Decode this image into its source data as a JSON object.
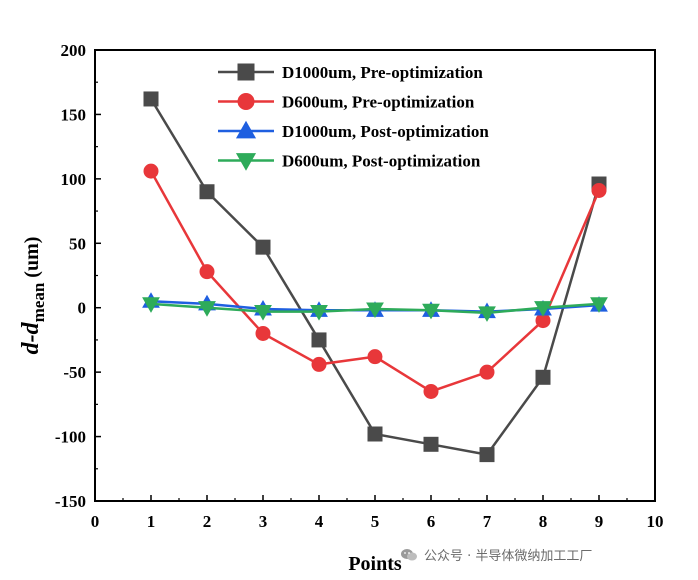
{
  "chart_data": {
    "type": "line",
    "title": "",
    "xlabel": "Points",
    "ylabel": "d-d",
    "ylabel_subscript": "mean",
    "ylabel_unit": " (um)",
    "xlim": [
      0,
      10
    ],
    "ylim": [
      -150,
      200
    ],
    "xticks": [
      0,
      1,
      2,
      3,
      4,
      5,
      6,
      7,
      8,
      9,
      10
    ],
    "yticks": [
      -150,
      -100,
      -50,
      0,
      50,
      100,
      150,
      200
    ],
    "grid": false,
    "legend_position": "top-right",
    "x": [
      1,
      2,
      3,
      4,
      5,
      6,
      7,
      8,
      9
    ],
    "series": [
      {
        "name": "D1000um, Pre-optimization",
        "marker": "square",
        "color": "#4a4a4a",
        "values": [
          162,
          90,
          47,
          -25,
          -98,
          -106,
          -114,
          -54,
          96
        ]
      },
      {
        "name": "D600um, Pre-optimization",
        "marker": "circle",
        "color": "#e8373a",
        "values": [
          106,
          28,
          -20,
          -44,
          -38,
          -65,
          -50,
          -10,
          91
        ]
      },
      {
        "name": "D1000um, Post-optimization",
        "marker": "triangle-up",
        "color": "#1f5fe0",
        "values": [
          5,
          3,
          -1,
          -2,
          -2,
          -2,
          -3,
          -1,
          2
        ]
      },
      {
        "name": "D600um, Post-optimization",
        "marker": "triangle-down",
        "color": "#2eab5a",
        "values": [
          3,
          0,
          -3,
          -3,
          -1,
          -2,
          -4,
          0,
          3
        ]
      }
    ]
  },
  "watermark": {
    "text": "公众号 · 半导体微纳加工工厂",
    "icon": "wechat-icon"
  }
}
